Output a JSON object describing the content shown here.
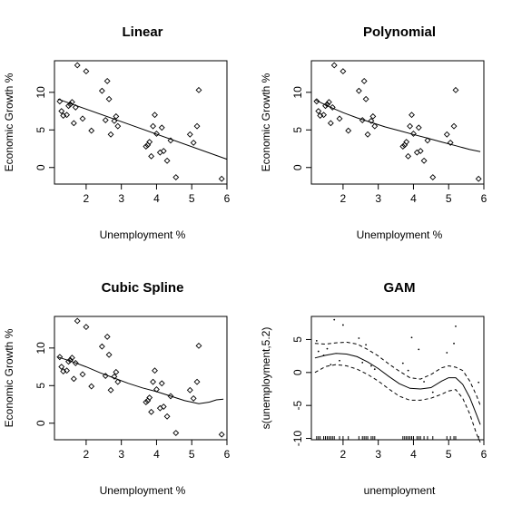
{
  "chart_data": [
    {
      "type": "scatter",
      "title": "Linear",
      "xlabel": "Unemployment %",
      "ylabel": "Economic Growth %",
      "xlim": [
        1.1,
        6.0
      ],
      "ylim": [
        -2.2,
        14.2
      ],
      "xticks": [
        "2",
        "3",
        "4",
        "5",
        "6"
      ],
      "yticks": [
        "0",
        "5",
        "10"
      ],
      "grid": false,
      "points": {
        "x": [
          1.25,
          1.3,
          1.35,
          1.45,
          1.5,
          1.55,
          1.6,
          1.65,
          1.7,
          1.75,
          1.9,
          2.0,
          2.15,
          2.45,
          2.55,
          2.6,
          2.65,
          2.7,
          2.8,
          2.85,
          2.9,
          3.7,
          3.75,
          3.8,
          3.85,
          3.9,
          3.95,
          4.0,
          4.1,
          4.15,
          4.2,
          4.3,
          4.4,
          4.55,
          4.95,
          5.05,
          5.15,
          5.2,
          5.85
        ],
        "y": [
          8.8,
          7.5,
          6.9,
          7.0,
          8.2,
          8.4,
          8.7,
          5.9,
          8.0,
          13.6,
          6.5,
          12.8,
          4.9,
          10.2,
          6.3,
          11.5,
          9.1,
          4.4,
          6.2,
          6.8,
          5.5,
          2.8,
          3.0,
          3.4,
          1.5,
          5.5,
          7.0,
          4.5,
          2.0,
          5.3,
          2.2,
          0.9,
          3.6,
          -1.3,
          4.4,
          3.3,
          5.5,
          10.3,
          -1.5
        ]
      },
      "fit": {
        "x": [
          1.2,
          6.0
        ],
        "y": [
          9.1,
          1.1
        ]
      }
    },
    {
      "type": "scatter",
      "title": "Polynomial",
      "xlabel": "Unemployment %",
      "ylabel": "Economic Growth %",
      "xlim": [
        1.1,
        6.0
      ],
      "ylim": [
        -2.2,
        14.2
      ],
      "xticks": [
        "2",
        "3",
        "4",
        "5",
        "6"
      ],
      "yticks": [
        "0",
        "5",
        "10"
      ],
      "grid": false,
      "points": {
        "x": [
          1.25,
          1.3,
          1.35,
          1.45,
          1.5,
          1.55,
          1.6,
          1.65,
          1.7,
          1.75,
          1.9,
          2.0,
          2.15,
          2.45,
          2.55,
          2.6,
          2.65,
          2.7,
          2.8,
          2.85,
          2.9,
          3.7,
          3.75,
          3.8,
          3.85,
          3.9,
          3.95,
          4.0,
          4.1,
          4.15,
          4.2,
          4.3,
          4.4,
          4.55,
          4.95,
          5.05,
          5.15,
          5.2,
          5.85
        ],
        "y": [
          8.8,
          7.5,
          6.9,
          7.0,
          8.2,
          8.4,
          8.7,
          5.9,
          8.0,
          13.6,
          6.5,
          12.8,
          4.9,
          10.2,
          6.3,
          11.5,
          9.1,
          4.4,
          6.2,
          6.8,
          5.5,
          2.8,
          3.0,
          3.4,
          1.5,
          5.5,
          7.0,
          4.5,
          2.0,
          5.3,
          2.2,
          0.9,
          3.6,
          -1.3,
          4.4,
          3.3,
          5.5,
          10.3,
          -1.5
        ]
      },
      "fit": {
        "x": [
          1.2,
          1.6,
          2.0,
          2.4,
          2.8,
          3.2,
          3.6,
          4.0,
          4.4,
          4.8,
          5.2,
          5.6,
          5.9
        ],
        "y": [
          9.0,
          8.1,
          7.3,
          6.6,
          6.0,
          5.4,
          4.9,
          4.4,
          3.9,
          3.4,
          2.9,
          2.4,
          2.1
        ]
      }
    },
    {
      "type": "scatter",
      "title": "Cubic Spline",
      "xlabel": "Unemployment %",
      "ylabel": "Economic Growth %",
      "xlim": [
        1.1,
        6.0
      ],
      "ylim": [
        -2.2,
        14.2
      ],
      "xticks": [
        "2",
        "3",
        "4",
        "5",
        "6"
      ],
      "yticks": [
        "0",
        "5",
        "10"
      ],
      "grid": false,
      "points": {
        "x": [
          1.25,
          1.3,
          1.35,
          1.45,
          1.5,
          1.55,
          1.6,
          1.65,
          1.7,
          1.75,
          1.9,
          2.0,
          2.15,
          2.45,
          2.55,
          2.6,
          2.65,
          2.7,
          2.8,
          2.85,
          2.9,
          3.7,
          3.75,
          3.8,
          3.85,
          3.9,
          3.95,
          4.0,
          4.1,
          4.15,
          4.2,
          4.3,
          4.4,
          4.55,
          4.95,
          5.05,
          5.15,
          5.2,
          5.85
        ],
        "y": [
          8.8,
          7.5,
          6.9,
          7.0,
          8.2,
          8.4,
          8.7,
          5.9,
          8.0,
          13.6,
          6.5,
          12.8,
          4.9,
          10.2,
          6.3,
          11.5,
          9.1,
          4.4,
          6.2,
          6.8,
          5.5,
          2.8,
          3.0,
          3.4,
          1.5,
          5.5,
          7.0,
          4.5,
          2.0,
          5.3,
          2.2,
          0.9,
          3.6,
          -1.3,
          4.4,
          3.3,
          5.5,
          10.3,
          -1.5
        ]
      },
      "fit": {
        "x": [
          1.2,
          1.6,
          2.0,
          2.4,
          2.8,
          3.2,
          3.6,
          4.0,
          4.4,
          4.8,
          5.0,
          5.2,
          5.5,
          5.7,
          5.9
        ],
        "y": [
          8.8,
          8.2,
          7.5,
          6.7,
          6.0,
          5.3,
          4.7,
          4.2,
          3.6,
          3.0,
          2.8,
          2.6,
          2.8,
          3.1,
          3.2
        ]
      }
    },
    {
      "type": "line",
      "title": "GAM",
      "xlabel": "unemployment",
      "ylabel": "s(unemployment,5.2)",
      "xlim": [
        1.1,
        6.0
      ],
      "ylim": [
        -10.2,
        8.5
      ],
      "xticks": [
        "2",
        "3",
        "4",
        "5",
        "6"
      ],
      "yticks": [
        "-10",
        "-5",
        "0",
        "5"
      ],
      "grid": false,
      "smooth": {
        "x": [
          1.2,
          1.5,
          1.8,
          2.1,
          2.4,
          2.7,
          3.0,
          3.3,
          3.6,
          3.9,
          4.2,
          4.5,
          4.8,
          5.0,
          5.2,
          5.4,
          5.6,
          5.8,
          5.9
        ],
        "y": [
          2.2,
          2.6,
          2.9,
          2.8,
          2.4,
          1.6,
          0.6,
          -0.6,
          -1.7,
          -2.4,
          -2.5,
          -2.3,
          -1.3,
          -0.8,
          -0.8,
          -1.8,
          -3.8,
          -6.5,
          -7.9
        ]
      },
      "upper": {
        "x": [
          1.2,
          1.5,
          1.8,
          2.1,
          2.4,
          2.7,
          3.0,
          3.3,
          3.6,
          3.9,
          4.2,
          4.5,
          4.8,
          5.0,
          5.2,
          5.4,
          5.6,
          5.8,
          5.9
        ],
        "y": [
          4.4,
          4.3,
          4.5,
          4.6,
          4.3,
          3.5,
          2.5,
          1.3,
          0.2,
          -0.8,
          -1.0,
          -0.3,
          0.7,
          1.0,
          0.8,
          0.3,
          -1.3,
          -3.6,
          -5.0
        ]
      },
      "lower": {
        "x": [
          1.2,
          1.5,
          1.8,
          2.1,
          2.4,
          2.7,
          3.0,
          3.3,
          3.6,
          3.9,
          4.2,
          4.5,
          4.8,
          5.0,
          5.2,
          5.4,
          5.6,
          5.8,
          5.9
        ],
        "y": [
          0.0,
          0.9,
          1.2,
          1.0,
          0.5,
          -0.3,
          -1.3,
          -2.5,
          -3.6,
          -4.2,
          -4.2,
          -3.9,
          -3.3,
          -2.8,
          -2.6,
          -3.9,
          -6.3,
          -9.4,
          -10.6
        ]
      },
      "residuals": {
        "x": [
          1.25,
          1.3,
          1.45,
          1.55,
          1.65,
          1.75,
          1.9,
          2.0,
          2.45,
          2.55,
          2.65,
          2.8,
          2.9,
          3.7,
          3.85,
          3.95,
          4.15,
          4.3,
          4.55,
          4.95,
          5.15,
          5.2,
          5.85
        ],
        "y": [
          4.8,
          3.2,
          2.6,
          3.6,
          1.2,
          8.0,
          1.8,
          7.2,
          5.2,
          1.5,
          4.2,
          1.0,
          0.5,
          1.4,
          0.3,
          5.3,
          3.5,
          -1.4,
          -3.0,
          3.0,
          4.4,
          7.0,
          -1.5
        ]
      },
      "rug": [
        1.25,
        1.3,
        1.35,
        1.45,
        1.5,
        1.55,
        1.6,
        1.65,
        1.7,
        1.75,
        1.9,
        2.0,
        2.15,
        2.45,
        2.55,
        2.6,
        2.65,
        2.7,
        2.8,
        2.85,
        2.9,
        3.7,
        3.75,
        3.8,
        3.85,
        3.9,
        3.95,
        4.0,
        4.1,
        4.15,
        4.2,
        4.3,
        4.4,
        4.55,
        4.95,
        5.05,
        5.15,
        5.2,
        5.85
      ]
    }
  ]
}
